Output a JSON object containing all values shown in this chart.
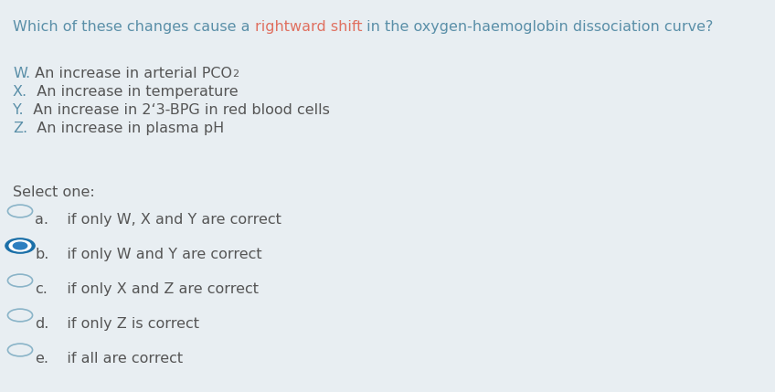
{
  "background_color": "#e8eef2",
  "text_color_blue": "#5a8fa8",
  "text_color_dark": "#555555",
  "text_color_highlight": "#e07060",
  "title_part1": "Which of these changes cause a ",
  "title_highlight": "rightward shift",
  "title_part2": " in the oxygen-haemoglobin dissociation curve?",
  "options": [
    {
      "letter": "W.",
      "rest": " An increase in arterial PCO",
      "sub": "2",
      "after": ""
    },
    {
      "letter": "X.",
      "rest": "  An increase in temperature",
      "sub": "",
      "after": ""
    },
    {
      "letter": "Y.",
      "rest": "  An increase in 2‘3-BPG in red blood cells",
      "sub": "",
      "after": ""
    },
    {
      "letter": "Z.",
      "rest": "  An increase in plasma pH",
      "sub": "",
      "after": ""
    }
  ],
  "select_label": "Select one:",
  "answers": [
    {
      "label": "a.",
      "text": "   if only W, X and Y are correct",
      "selected": false
    },
    {
      "label": "b.",
      "text": "   if only W and Y are correct",
      "selected": true
    },
    {
      "label": "c.",
      "text": "   if only X and Z are correct",
      "selected": false
    },
    {
      "label": "d.",
      "text": "   if only Z is correct",
      "selected": false
    },
    {
      "label": "e.",
      "text": "   if all are correct",
      "selected": false
    }
  ],
  "radio_color_unselected": "#8ab4c8",
  "radio_selected_outer": "#1a6fa8",
  "radio_selected_white": "#ffffff",
  "radio_selected_inner": "#2d7fc0",
  "font_size": 11.5
}
